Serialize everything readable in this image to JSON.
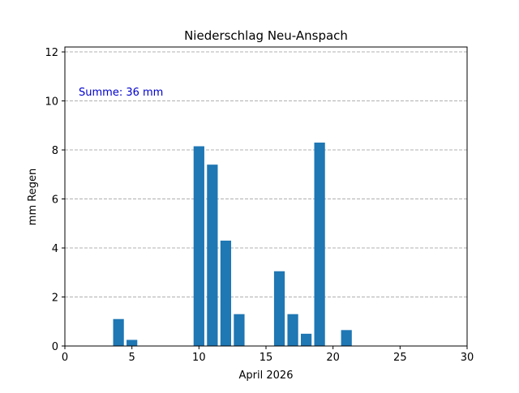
{
  "chart_data": {
    "type": "bar",
    "title": "Niederschlag Neu-Anspach",
    "xlabel": "April 2026",
    "ylabel": "mm Regen",
    "xlim": [
      0,
      30
    ],
    "ylim": [
      0,
      12.2
    ],
    "xticks": [
      0,
      5,
      10,
      15,
      20,
      25,
      30
    ],
    "yticks": [
      0,
      2,
      4,
      6,
      8,
      10,
      12
    ],
    "grid": "horizontal dashed",
    "bar_color": "#1f77b4",
    "annotation": {
      "text": "Summe: 36 mm",
      "color": "#0000cc"
    },
    "bars": [
      {
        "x": 4,
        "value": 1.1
      },
      {
        "x": 5,
        "value": 0.25
      },
      {
        "x": 10,
        "value": 8.15
      },
      {
        "x": 11,
        "value": 7.4
      },
      {
        "x": 12,
        "value": 4.3
      },
      {
        "x": 13,
        "value": 1.3
      },
      {
        "x": 16,
        "value": 3.05
      },
      {
        "x": 17,
        "value": 1.3
      },
      {
        "x": 18,
        "value": 0.5
      },
      {
        "x": 19,
        "value": 8.3
      },
      {
        "x": 21,
        "value": 0.65
      }
    ]
  }
}
